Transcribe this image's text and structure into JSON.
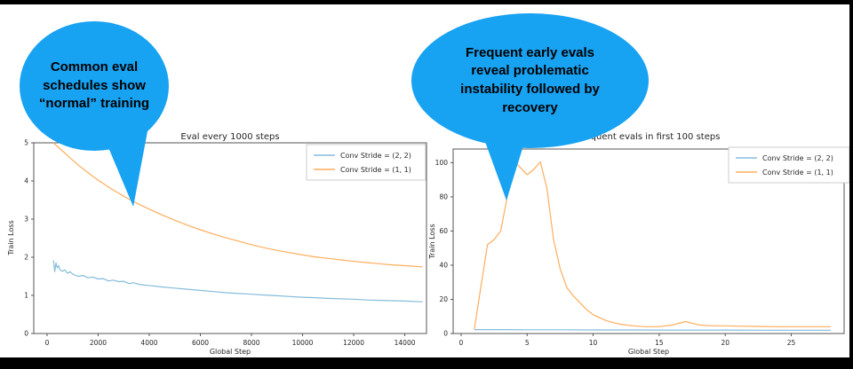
{
  "bubbles": {
    "left": {
      "lines": [
        "Common eval",
        "schedules show",
        "“normal” training"
      ],
      "fill": "#18A2F2",
      "text_color": "#000000"
    },
    "right": {
      "lines": [
        "Frequent early evals",
        "reveal problematic",
        "instability followed by",
        "recovery"
      ],
      "fill": "#18A2F2",
      "text_color": "#000000"
    }
  },
  "chart_data": [
    {
      "type": "line",
      "title": "Eval every 1000 steps",
      "xlabel": "Global Step",
      "ylabel": "Train Loss",
      "xlim": [
        -520,
        14850
      ],
      "ylim": [
        0,
        5
      ],
      "xticks": [
        0,
        2000,
        4000,
        6000,
        8000,
        10000,
        12000,
        14000
      ],
      "yticks": [
        0,
        1,
        2,
        3,
        4,
        5
      ],
      "grid": false,
      "legend_position": "upper right",
      "series": [
        {
          "name": "Conv Stride =  (2, 2)",
          "color": "#85BCDB",
          "x": [
            250,
            300,
            350,
            400,
            450,
            500,
            600,
            700,
            800,
            900,
            1000,
            1200,
            1400,
            1600,
            1800,
            2000,
            2200,
            2400,
            2600,
            2800,
            3000,
            3200,
            3400,
            3600,
            3800,
            4000,
            4500,
            5000,
            5500,
            6000,
            6500,
            7000,
            7500,
            8000,
            8500,
            9000,
            9500,
            10000,
            10500,
            11000,
            11500,
            12000,
            12500,
            13000,
            13500,
            14000,
            14700
          ],
          "y": [
            1.92,
            1.62,
            1.85,
            1.72,
            1.78,
            1.68,
            1.63,
            1.67,
            1.58,
            1.62,
            1.56,
            1.5,
            1.52,
            1.46,
            1.48,
            1.43,
            1.44,
            1.38,
            1.4,
            1.36,
            1.37,
            1.31,
            1.33,
            1.29,
            1.27,
            1.26,
            1.22,
            1.19,
            1.16,
            1.13,
            1.1,
            1.07,
            1.05,
            1.03,
            1.01,
            0.99,
            0.97,
            0.95,
            0.94,
            0.92,
            0.91,
            0.9,
            0.88,
            0.87,
            0.86,
            0.85,
            0.83
          ]
        },
        {
          "name": "Conv Stride =  (1, 1)",
          "color": "#FFAD5C",
          "x": [
            250,
            500,
            750,
            1000,
            1250,
            1500,
            1750,
            2000,
            2250,
            2500,
            2750,
            3000,
            3250,
            3500,
            3750,
            4000,
            4500,
            5000,
            5500,
            6000,
            6500,
            7000,
            7500,
            8000,
            8500,
            9000,
            9500,
            10000,
            10500,
            11000,
            11500,
            12000,
            12500,
            13000,
            13500,
            14000,
            14700
          ],
          "y": [
            5.0,
            4.85,
            4.7,
            4.55,
            4.4,
            4.27,
            4.14,
            4.02,
            3.91,
            3.8,
            3.7,
            3.6,
            3.51,
            3.42,
            3.34,
            3.26,
            3.11,
            2.97,
            2.84,
            2.72,
            2.61,
            2.51,
            2.42,
            2.33,
            2.25,
            2.18,
            2.12,
            2.06,
            2.01,
            1.97,
            1.93,
            1.89,
            1.86,
            1.83,
            1.8,
            1.78,
            1.75
          ]
        }
      ]
    },
    {
      "type": "line",
      "title": "Frequent evals in first 100 steps",
      "xlabel": "Global Step",
      "ylabel": "Train Loss",
      "xlim": [
        -0.6,
        29.0
      ],
      "ylim": [
        0,
        108
      ],
      "xticks": [
        0,
        5,
        10,
        15,
        20,
        25
      ],
      "yticks": [
        0,
        20,
        40,
        60,
        80,
        100
      ],
      "grid": false,
      "legend_position": "upper right",
      "series": [
        {
          "name": "Conv Stride =  (2, 2)",
          "color": "#85BCDB",
          "x": [
            1,
            3,
            5,
            8,
            10,
            13,
            15,
            18,
            20,
            23,
            25,
            28
          ],
          "y": [
            2.3,
            2.3,
            2.2,
            2.2,
            2.1,
            2.1,
            2.0,
            2.0,
            2.0,
            1.9,
            1.9,
            1.9
          ]
        },
        {
          "name": "Conv Stride =  (1, 1)",
          "color": "#FFAD5C",
          "x": [
            1,
            2,
            2.5,
            3,
            3.5,
            4,
            4.5,
            5,
            5.5,
            6,
            6.5,
            7,
            7.5,
            8,
            8.5,
            9,
            9.5,
            10,
            11,
            12,
            13,
            14,
            15,
            16,
            17,
            18,
            19,
            20,
            21,
            22,
            23,
            24,
            25,
            26,
            27,
            28
          ],
          "y": [
            2.5,
            52,
            55,
            60,
            80,
            101,
            97,
            93,
            96,
            100.5,
            85,
            55,
            38,
            27,
            22,
            18,
            14,
            11,
            7.5,
            5.5,
            4.5,
            4,
            4,
            5,
            7,
            5,
            4.5,
            4.5,
            4.3,
            4.2,
            4.1,
            4,
            4,
            4,
            4,
            4
          ]
        }
      ]
    }
  ],
  "style": {
    "spine_color": "#555555",
    "text_color": "#262626",
    "legend_border": "#cccccc",
    "legend_bg": "#ffffff"
  }
}
